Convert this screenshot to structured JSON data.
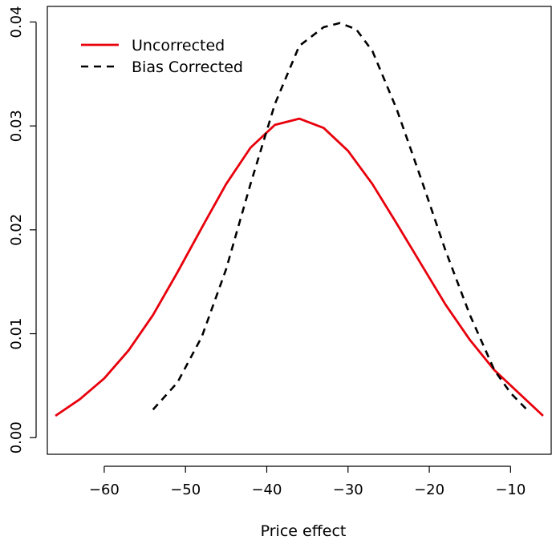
{
  "chart_data": {
    "type": "line",
    "title": "",
    "xlabel": "Price effect",
    "ylabel": "",
    "xlim": [
      -67,
      -5
    ],
    "ylim": [
      -0.0016,
      0.0415
    ],
    "x_ticks": [
      -60,
      -50,
      -40,
      -30,
      -20,
      -10
    ],
    "x_tick_labels": [
      "−60",
      "−50",
      "−40",
      "−30",
      "−20",
      "−10"
    ],
    "y_ticks": [
      0.0,
      0.01,
      0.02,
      0.03,
      0.04
    ],
    "y_tick_labels": [
      "0.00",
      "0.01",
      "0.02",
      "0.03",
      "0.04"
    ],
    "grid": false,
    "legend_position": "top-left",
    "series": [
      {
        "name": "Uncorrected",
        "color": "#e8000b",
        "style": "solid",
        "x": [
          -66,
          -63,
          -60,
          -57,
          -54,
          -51,
          -48,
          -45,
          -42,
          -39,
          -36,
          -33,
          -30,
          -27,
          -24,
          -21,
          -18,
          -15,
          -12,
          -9,
          -6
        ],
        "y": [
          0.0021,
          0.0037,
          0.0057,
          0.0084,
          0.0118,
          0.0159,
          0.0202,
          0.0244,
          0.0279,
          0.0301,
          0.0307,
          0.0298,
          0.0276,
          0.0244,
          0.0206,
          0.0167,
          0.0128,
          0.0094,
          0.0065,
          0.0043,
          0.0021
        ]
      },
      {
        "name": "Bias Corrected",
        "color": "#000000",
        "style": "dashed",
        "x": [
          -54,
          -51,
          -48,
          -45,
          -42,
          -39,
          -36,
          -33,
          -31,
          -29,
          -27,
          -24,
          -21,
          -18,
          -15,
          -12,
          -10,
          -8
        ],
        "y": [
          0.0027,
          0.0053,
          0.0097,
          0.0162,
          0.0244,
          0.0321,
          0.0377,
          0.0395,
          0.0399,
          0.0393,
          0.0372,
          0.0316,
          0.0249,
          0.018,
          0.0118,
          0.0065,
          0.0043,
          0.0027
        ]
      }
    ]
  }
}
